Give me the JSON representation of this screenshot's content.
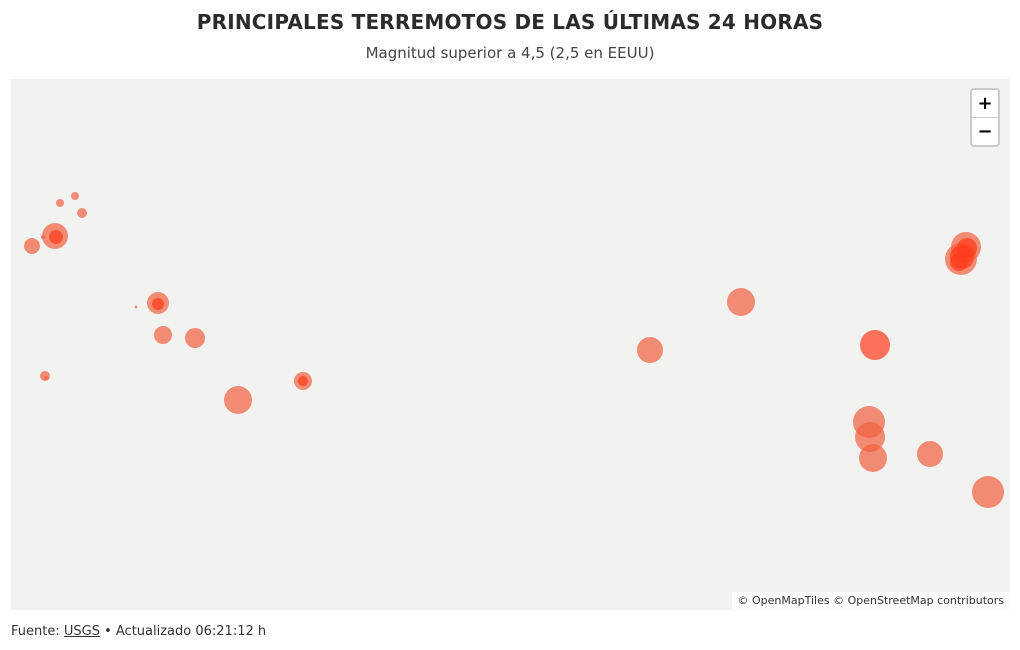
{
  "header": {
    "title": "PRINCIPALES TERREMOTOS DE LAS ÚLTIMAS 24 HORAS",
    "subtitle": "Magnitud superior a 4,5 (2,5 en EEUU)"
  },
  "map": {
    "zoom_in_label": "+",
    "zoom_out_label": "−",
    "attribution_1": "© OpenMapTiles",
    "attribution_2": "© OpenStreetMap contributors",
    "marker_fill": "#f2603f",
    "marker_fill_dark": "#ff3b1a",
    "markers": [
      {
        "id": "m1",
        "size": "small"
      },
      {
        "id": "m2",
        "size": "small"
      },
      {
        "id": "m3",
        "size": "small"
      },
      {
        "id": "m4",
        "size": "medium"
      },
      {
        "id": "m5",
        "size": "medium"
      },
      {
        "id": "m6",
        "size": "medium"
      },
      {
        "id": "m7",
        "size": "small"
      },
      {
        "id": "m8",
        "size": "small"
      },
      {
        "id": "m9",
        "size": "small"
      },
      {
        "id": "m10",
        "size": "medium"
      },
      {
        "id": "m11",
        "size": "medium"
      },
      {
        "id": "m12",
        "size": "small"
      },
      {
        "id": "m13",
        "size": "large"
      },
      {
        "id": "m14",
        "size": "small"
      },
      {
        "id": "m15",
        "size": "medium"
      },
      {
        "id": "m16",
        "size": "medium"
      },
      {
        "id": "m17",
        "size": "medium"
      },
      {
        "id": "m18",
        "size": "medium"
      },
      {
        "id": "m19",
        "size": "large"
      },
      {
        "id": "m20",
        "size": "large"
      },
      {
        "id": "m21",
        "size": "large"
      },
      {
        "id": "m22",
        "size": "medium"
      },
      {
        "id": "m23",
        "size": "large"
      },
      {
        "id": "m24",
        "size": "large"
      },
      {
        "id": "m25",
        "size": "large"
      },
      {
        "id": "m26",
        "size": "large"
      },
      {
        "id": "m27",
        "size": "large"
      }
    ]
  },
  "footer": {
    "source_prefix": "Fuente: ",
    "source_link": "USGS",
    "updated": " • Actualizado 06:21:12 h"
  }
}
